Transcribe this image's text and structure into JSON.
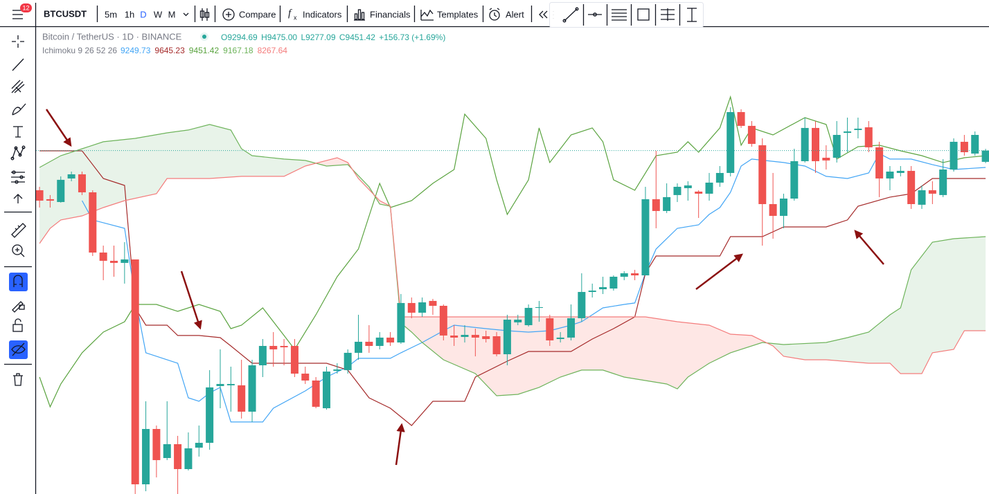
{
  "toolbar": {
    "badge": "12",
    "symbol": "BTCUSDT",
    "intervals": [
      "5m",
      "1h",
      "D",
      "W",
      "M"
    ],
    "buttons": [
      "Compare",
      "Indicators",
      "Financials",
      "Templates",
      "Alert"
    ]
  },
  "legend": {
    "symbol": "Bitcoin / TetherUS · 1D · BINANCE",
    "ohlc": [
      "O9294.69",
      "H9475.00",
      "L9277.09",
      "C9451.42"
    ],
    "change": "+156.73 (+1.69%)",
    "indicator": "Ichimoku 9 26 52 26",
    "indicator_values": [
      "9249.73",
      "9645.23",
      "9451.42",
      "9167.18",
      "8267.64"
    ]
  },
  "chart_data": {
    "type": "candlestick",
    "xlim": [
      -0.33,
      89.32
    ],
    "ylim": [
      4667,
      11164
    ],
    "up_color": "#26a69a",
    "down_color": "#ef5350",
    "last_price_line": true,
    "cloud_colors": [
      "rgba(67,160,71,0.12)",
      "rgba(244,67,54,0.13)"
    ],
    "open": [
      8899,
      8774,
      8735,
      9063,
      9121,
      8870,
      8031,
      7916,
      7887,
      7935,
      4802,
      5573,
      5168,
      5361,
      5014,
      5313,
      5380,
      6171,
      6181,
      6181,
      5814,
      6460,
      6730,
      6730,
      6730,
      6344,
      6248,
      5862,
      6383,
      6393,
      6634,
      6788,
      6730,
      6846,
      6778,
      7328,
      7193,
      7357,
      7289,
      6875,
      6855,
      6884,
      6865,
      6865,
      6614,
      7058,
      7019,
      7260,
      7116,
      6826,
      6846,
      7116,
      7482,
      7520,
      7530,
      7694,
      7742,
      7713,
      8774,
      8610,
      8832,
      8928,
      8880,
      8851,
      9005,
      9140,
      9988,
      9796,
      9526,
      8706,
      8542,
      8783,
      9304,
      9767,
      9352,
      9352,
      9699,
      9738,
      9776,
      9497,
      9063,
      9140,
      9169,
      8697,
      8899,
      8832,
      9188,
      9574,
      9410,
      9294.69
    ],
    "high": [
      8947,
      8832,
      9092,
      9159,
      9159,
      8899,
      8128,
      8128,
      8176,
      7935,
      5959,
      5621,
      5959,
      5477,
      5525,
      5621,
      6393,
      6682,
      6441,
      6537,
      6537,
      6826,
      6923,
      6826,
      6826,
      6441,
      6296,
      6441,
      6489,
      6682,
      7164,
      7019,
      6923,
      6923,
      7453,
      7405,
      7405,
      7385,
      7308,
      7019,
      7019,
      6971,
      6942,
      6923,
      7164,
      7164,
      7308,
      7357,
      7164,
      6923,
      7308,
      7742,
      7598,
      7694,
      7713,
      7771,
      7790,
      8947,
      9448,
      8995,
      8995,
      9024,
      8899,
      9140,
      9236,
      10056,
      10027,
      9863,
      9622,
      9140,
      8851,
      9477,
      9911,
      9863,
      9526,
      9863,
      9911,
      9911,
      9863,
      9574,
      9236,
      9236,
      9236,
      8966,
      9024,
      9333,
      9622,
      9670,
      9718,
      9475
    ],
    "low": [
      8658,
      8658,
      8726,
      9024,
      8832,
      7983,
      7646,
      7694,
      7598,
      4667,
      4706,
      4898,
      5139,
      4667,
      4995,
      5188,
      5284,
      5862,
      5814,
      5718,
      5670,
      6296,
      6441,
      6460,
      6296,
      6200,
      5862,
      5843,
      6344,
      6344,
      6537,
      6634,
      6682,
      6730,
      6759,
      7116,
      7135,
      7164,
      6807,
      6730,
      6778,
      6585,
      6778,
      6585,
      6460,
      7019,
      7000,
      7067,
      6730,
      6778,
      6807,
      7067,
      7405,
      7453,
      7501,
      7646,
      7646,
      7713,
      8369,
      8581,
      8735,
      8754,
      8513,
      8754,
      8947,
      9092,
      9767,
      9506,
      8128,
      8224,
      8369,
      8754,
      9285,
      9140,
      9188,
      9285,
      9429,
      9622,
      9429,
      8803,
      8899,
      9092,
      8639,
      8639,
      8706,
      8803,
      9159,
      9381,
      9381,
      9277.09
    ],
    "close": [
      8754,
      8754,
      9044,
      9121,
      8870,
      8031,
      7916,
      7887,
      7935,
      4802,
      5573,
      5139,
      5361,
      5014,
      5303,
      5380,
      6152,
      6200,
      6200,
      5814,
      6460,
      6730,
      6682,
      6711,
      6344,
      6248,
      5882,
      6373,
      6402,
      6634,
      6788,
      6730,
      6846,
      6778,
      7328,
      7193,
      7337,
      7289,
      6875,
      6846,
      6884,
      6846,
      6826,
      6614,
      7096,
      7096,
      7260,
      7270,
      6807,
      6846,
      7116,
      7482,
      7501,
      7549,
      7694,
      7742,
      7713,
      8774,
      8610,
      8803,
      8947,
      8966,
      8851,
      9005,
      9140,
      9988,
      9796,
      9545,
      8706,
      8542,
      8783,
      9304,
      9767,
      9304,
      9314,
      9670,
      9718,
      9757,
      9497,
      9063,
      9159,
      9169,
      8706,
      8899,
      8851,
      9188,
      9574,
      9429,
      9670,
      9451.42
    ],
    "lines": [
      {
        "color": "#42a5f5",
        "x": [
          4,
          5,
          8,
          9,
          10,
          13,
          14,
          15,
          16,
          17,
          18,
          21,
          22,
          25,
          27,
          29,
          30,
          33,
          34,
          36,
          38,
          39,
          42,
          44,
          46,
          48,
          50,
          51,
          53,
          55,
          56,
          57,
          58,
          60,
          62,
          63,
          64,
          65,
          66,
          67,
          70,
          72,
          74,
          76,
          78,
          79,
          80,
          82,
          84,
          86,
          89
        ],
        "values": [
          8754,
          8485,
          8369,
          7405,
          6634,
          6489,
          6007,
          5959,
          6074,
          6152,
          5670,
          5670,
          5862,
          6103,
          6296,
          6441,
          6557,
          6557,
          6634,
          6778,
          6942,
          7019,
          6971,
          6942,
          6923,
          6942,
          7019,
          7067,
          7260,
          7308,
          7328,
          7742,
          8080,
          8369,
          8417,
          8562,
          8658,
          8870,
          9236,
          9333,
          9285,
          9236,
          9092,
          9063,
          9140,
          9410,
          9333,
          9333,
          9256,
          9188,
          9217
        ]
      },
      {
        "color": "#a52a2a",
        "x": [
          0,
          4,
          6,
          8,
          9,
          10,
          12,
          13,
          15,
          17,
          18,
          20,
          27,
          29,
          31,
          33,
          35,
          37,
          40,
          41,
          44,
          46,
          50,
          52,
          54,
          56,
          57,
          58,
          64,
          65,
          68,
          70,
          74,
          76,
          77,
          80,
          82,
          84,
          89
        ],
        "values": [
          9448,
          9448,
          9063,
          8966,
          7260,
          7019,
          7019,
          6875,
          6875,
          6846,
          6730,
          6489,
          6489,
          6393,
          6007,
          5862,
          5621,
          5959,
          5959,
          6296,
          6518,
          6653,
          6653,
          6826,
          6971,
          7135,
          7742,
          7983,
          7983,
          8253,
          8253,
          8388,
          8388,
          8485,
          8677,
          8803,
          8851,
          9063,
          9063
        ]
      },
      {
        "color": "#5aa33f",
        "x": [
          0,
          1,
          2,
          4,
          6,
          8,
          9,
          11,
          13,
          15,
          17,
          18,
          19,
          21,
          23,
          24,
          26,
          28,
          30,
          32,
          33,
          35,
          37,
          39,
          40,
          42,
          43,
          44,
          46,
          47,
          48,
          50,
          52,
          53,
          54,
          56,
          58,
          60,
          61,
          62,
          64,
          65,
          66,
          67,
          69,
          72,
          74,
          75,
          77,
          79,
          81,
          83,
          85,
          87,
          89
        ],
        "values": [
          6296,
          5882,
          6200,
          6634,
          6923,
          7067,
          7308,
          7308,
          7212,
          7308,
          7212,
          6971,
          7019,
          7260,
          6875,
          6682,
          7164,
          7694,
          8080,
          8995,
          8658,
          8754,
          8995,
          9188,
          9959,
          9622,
          9044,
          8562,
          9044,
          9767,
          9285,
          9670,
          9767,
          9574,
          9044,
          8899,
          9381,
          9429,
          9574,
          9429,
          9767,
          10200,
          9526,
          9767,
          9670,
          9911,
          9815,
          9333,
          9506,
          9526,
          9448,
          9381,
          9285,
          9352,
          9381
        ]
      },
      {
        "color": "#6db35a",
        "x": [
          0,
          2,
          4,
          6,
          9,
          12,
          14,
          16,
          18,
          19,
          20,
          23,
          25,
          27,
          29,
          31,
          32,
          33,
          34,
          35,
          36,
          38,
          41,
          43,
          45,
          47,
          49,
          51,
          53,
          55,
          57,
          59,
          60,
          61,
          63,
          65,
          68,
          70,
          74,
          76,
          78,
          80,
          81,
          82,
          84,
          86,
          89
        ],
        "values": [
          9217,
          9381,
          9477,
          9574,
          9622,
          9699,
          9738,
          9815,
          9738,
          9477,
          9381,
          9333,
          9314,
          9236,
          9256,
          8947,
          8706,
          8677,
          7048,
          6923,
          6778,
          6537,
          6344,
          6036,
          6055,
          6152,
          6296,
          6393,
          6393,
          6296,
          6248,
          6200,
          6132,
          6296,
          6489,
          6634,
          6778,
          6749,
          6778,
          6846,
          6923,
          7164,
          7260,
          7790,
          8176,
          8224,
          8253
        ]
      },
      {
        "color": "#f47c7c",
        "x": [
          0,
          1,
          2,
          4,
          6,
          8,
          11,
          12,
          16,
          19,
          23,
          25,
          27,
          28,
          29,
          30,
          32,
          33,
          34,
          57,
          60,
          63,
          65,
          67,
          69,
          70,
          72,
          74,
          78,
          80,
          81,
          83,
          84,
          86,
          87,
          89
        ],
        "values": [
          8157,
          8369,
          8485,
          8542,
          8658,
          8754,
          8851,
          9063,
          9063,
          9092,
          9092,
          9236,
          9314,
          9352,
          9285,
          9063,
          8754,
          8677,
          7135,
          7135,
          7067,
          7019,
          6894,
          6875,
          6730,
          6585,
          6537,
          6537,
          6489,
          6489,
          6344,
          6344,
          6634,
          6682,
          6942,
          6942
        ]
      }
    ]
  }
}
